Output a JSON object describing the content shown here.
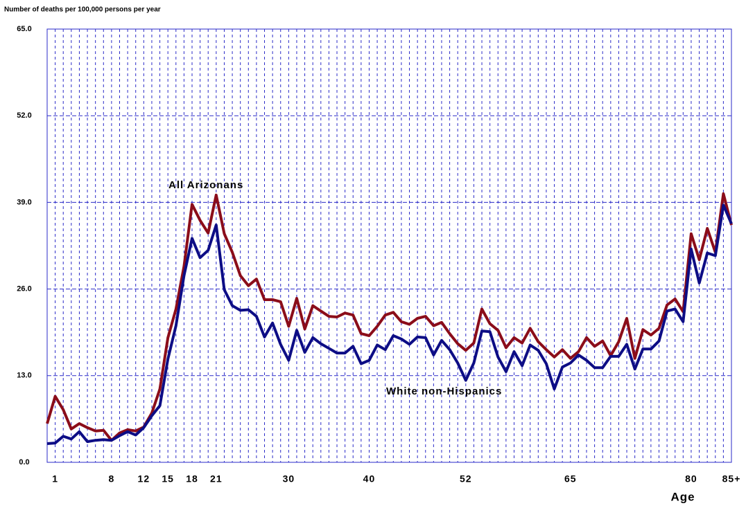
{
  "chart_data": {
    "type": "line",
    "y_axis_label": "Number of deaths per 100,000 persons per year",
    "x_axis_label": "Age",
    "categories": [
      null,
      "1",
      null,
      null,
      null,
      null,
      null,
      null,
      "8",
      null,
      null,
      null,
      "12",
      null,
      null,
      "15",
      null,
      null,
      "18",
      null,
      null,
      "21",
      null,
      null,
      null,
      null,
      null,
      null,
      null,
      null,
      "30",
      null,
      null,
      null,
      null,
      null,
      null,
      null,
      null,
      null,
      "40",
      null,
      null,
      null,
      null,
      null,
      null,
      null,
      null,
      null,
      null,
      null,
      "52",
      null,
      null,
      null,
      null,
      null,
      null,
      null,
      null,
      null,
      null,
      null,
      null,
      "65",
      null,
      null,
      null,
      null,
      null,
      null,
      null,
      null,
      null,
      null,
      null,
      null,
      null,
      null,
      "80",
      null,
      null,
      null,
      null,
      "85+"
    ],
    "series": [
      {
        "name": "All Arizonans",
        "color": "#8b0d1a",
        "values": [
          5.8,
          9.9,
          7.9,
          5.0,
          5.8,
          5.2,
          4.7,
          4.8,
          3.3,
          4.4,
          4.9,
          4.7,
          5.3,
          7.4,
          11.0,
          18.7,
          23.0,
          29.4,
          38.7,
          36.3,
          34.4,
          40.1,
          34.3,
          31.5,
          28.0,
          26.5,
          27.5,
          24.4,
          24.4,
          24.1,
          20.4,
          24.6,
          20.0,
          23.5,
          22.7,
          21.9,
          21.8,
          22.4,
          22.1,
          19.3,
          19.0,
          20.4,
          22.1,
          22.5,
          21.1,
          20.7,
          21.6,
          21.9,
          20.5,
          21.0,
          19.3,
          17.8,
          16.8,
          17.9,
          23.0,
          20.8,
          19.8,
          17.2,
          18.7,
          17.9,
          20.1,
          18.1,
          16.9,
          15.8,
          16.9,
          15.6,
          16.6,
          18.7,
          17.4,
          18.2,
          16.0,
          18.1,
          21.6,
          15.6,
          19.9,
          19.1,
          20.1,
          23.6,
          24.5,
          22.6,
          34.3,
          30.4,
          35.1,
          31.5,
          40.3,
          35.6
        ]
      },
      {
        "name": "White non-Hispanics",
        "color": "#0d0d85",
        "values": [
          2.8,
          2.9,
          3.9,
          3.5,
          4.6,
          3.1,
          3.3,
          3.4,
          3.3,
          4.0,
          4.6,
          4.1,
          5.2,
          7.0,
          8.5,
          15.5,
          20.5,
          28.0,
          33.6,
          30.7,
          31.8,
          35.6,
          25.9,
          23.5,
          22.8,
          22.9,
          21.9,
          18.8,
          20.9,
          17.7,
          15.3,
          19.8,
          16.5,
          18.7,
          17.8,
          17.1,
          16.4,
          16.4,
          17.4,
          14.8,
          15.3,
          17.6,
          16.9,
          19.0,
          18.5,
          17.7,
          18.8,
          18.7,
          16.1,
          18.3,
          16.9,
          14.9,
          12.3,
          14.9,
          19.7,
          19.6,
          15.8,
          13.6,
          16.6,
          14.5,
          17.6,
          16.8,
          14.8,
          11.0,
          14.3,
          14.9,
          16.1,
          15.3,
          14.2,
          14.2,
          15.9,
          15.9,
          17.7,
          14.0,
          17.0,
          17.0,
          18.2,
          22.7,
          23.0,
          21.1,
          32.0,
          26.9,
          31.4,
          31.0,
          38.6,
          35.8
        ]
      }
    ],
    "ylim": [
      0,
      65
    ],
    "yticks": [
      {
        "value": 0,
        "label": "0.0"
      },
      {
        "value": 13,
        "label": "13.0"
      },
      {
        "value": 26,
        "label": "26.0"
      },
      {
        "value": 39,
        "label": "39.0"
      },
      {
        "value": 52,
        "label": "52.0"
      },
      {
        "value": 65,
        "label": "65.0"
      }
    ],
    "grid": true,
    "grid_color": "#2a2ac8"
  }
}
